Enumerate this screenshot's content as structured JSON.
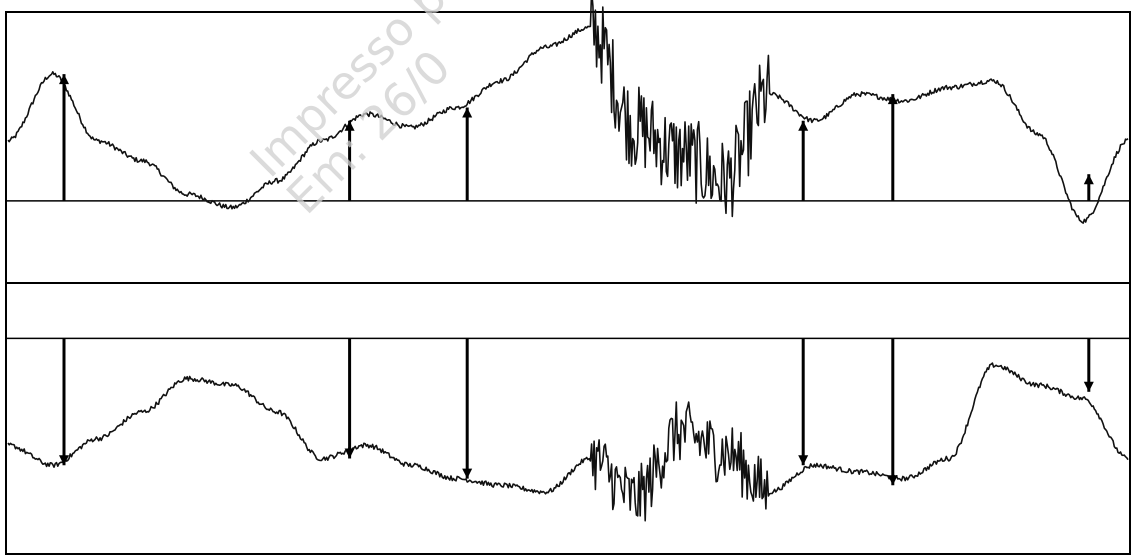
{
  "watermark": {
    "line1": "Impresso por:",
    "line2": "Em: 26/0"
  },
  "colors": {
    "trace": "#111111",
    "frame": "#000000",
    "watermark": "#cfcfcf",
    "background": "#ffffff"
  },
  "chart_data": {
    "type": "line",
    "grid": false,
    "panels": [
      {
        "name": "",
        "baseline": 0,
        "ylim": [
          -1.2,
          2.8
        ],
        "x": [
          0,
          4,
          8,
          12,
          16,
          20,
          24,
          28,
          32,
          36,
          40,
          44,
          48,
          52,
          56,
          60,
          64,
          68,
          72,
          76,
          80,
          84,
          88,
          92,
          96,
          100
        ],
        "values": [
          0.9,
          1.9,
          0.9,
          0.6,
          0.1,
          -0.1,
          0.3,
          0.9,
          1.3,
          1.1,
          1.4,
          1.8,
          2.3,
          2.6,
          1.1,
          0.7,
          0.3,
          1.6,
          1.2,
          1.6,
          1.5,
          1.7,
          1.8,
          1.0,
          -0.3,
          0.9
        ],
        "arrows": [
          {
            "x": 5,
            "value": 1.9,
            "direction": "up"
          },
          {
            "x": 30.5,
            "value": 1.2,
            "direction": "up"
          },
          {
            "x": 41,
            "value": 1.4,
            "direction": "up"
          },
          {
            "x": 71,
            "value": 1.2,
            "direction": "up"
          },
          {
            "x": 79,
            "value": 1.6,
            "direction": "up"
          },
          {
            "x": 96.5,
            "value": 0.4,
            "direction": "up"
          }
        ]
      },
      {
        "name": "",
        "baseline": 0,
        "ylim": [
          -1.6,
          0.4
        ],
        "x": [
          0,
          4,
          8,
          12,
          16,
          20,
          24,
          28,
          32,
          36,
          40,
          44,
          48,
          52,
          56,
          60,
          64,
          68,
          72,
          76,
          80,
          84,
          88,
          92,
          96,
          100
        ],
        "values": [
          -0.8,
          -0.95,
          -0.75,
          -0.55,
          -0.3,
          -0.35,
          -0.55,
          -0.9,
          -0.8,
          -0.95,
          -1.05,
          -1.1,
          -1.15,
          -0.9,
          -1.2,
          -0.7,
          -0.85,
          -1.15,
          -0.95,
          -1.0,
          -1.05,
          -0.9,
          -0.2,
          -0.35,
          -0.45,
          -0.9
        ],
        "arrows": [
          {
            "x": 5,
            "value": -0.95,
            "direction": "down"
          },
          {
            "x": 30.5,
            "value": -0.9,
            "direction": "down"
          },
          {
            "x": 41,
            "value": -1.05,
            "direction": "down"
          },
          {
            "x": 71,
            "value": -0.95,
            "direction": "down"
          },
          {
            "x": 79,
            "value": -1.1,
            "direction": "down"
          },
          {
            "x": 96.5,
            "value": -0.4,
            "direction": "down"
          }
        ]
      }
    ]
  }
}
